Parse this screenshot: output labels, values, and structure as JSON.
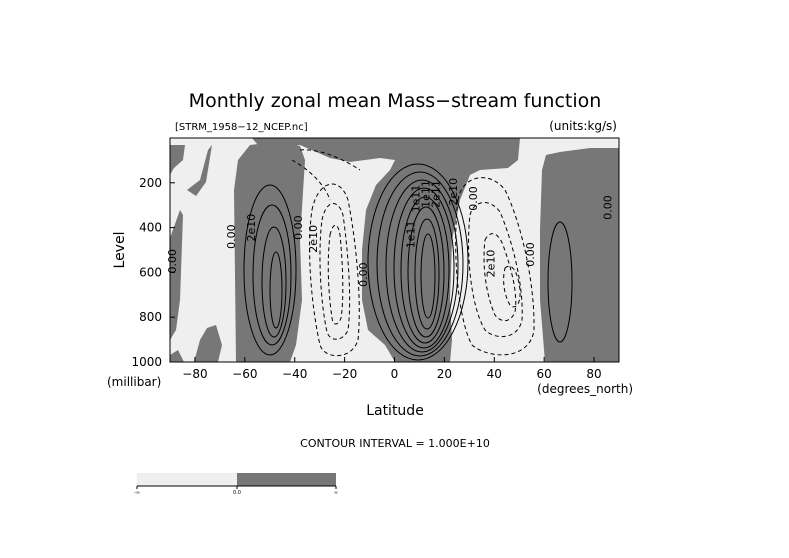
{
  "chart_data": {
    "type": "contour",
    "title": "Monthly zonal mean Mass−stream function",
    "subtitle_left": "[STRM_1958−12_NCEP.nc]",
    "subtitle_right": "(units:kg/s)",
    "xlabel": "Latitude",
    "ylabel": "Level",
    "x_unit": "(degrees_north)",
    "y_unit": "(millibar)",
    "xlim": [
      -90,
      90
    ],
    "ylim": [
      1000,
      0
    ],
    "x_ticks": [
      -80,
      -60,
      -40,
      -20,
      0,
      20,
      40,
      60,
      80
    ],
    "x_tick_labels": [
      "−80",
      "−60",
      "−40",
      "−20",
      "0",
      "20",
      "40",
      "60",
      "80"
    ],
    "y_ticks": [
      200,
      400,
      600,
      800,
      1000
    ],
    "y_tick_labels": [
      "200",
      "400",
      "600",
      "800",
      "1000"
    ],
    "contour_interval_text": "CONTOUR INTERVAL = 1.000E+10",
    "contour_labels": [
      {
        "text": "0.00",
        "lat": -91,
        "lev": 550
      },
      {
        "text": "0.00",
        "lat": -64,
        "lev": 440
      },
      {
        "text": "2e10",
        "lat": -56,
        "lev": 400
      },
      {
        "text": "0.00",
        "lat": -37,
        "lev": 400
      },
      {
        "text": "2e10",
        "lat": -31,
        "lev": 450
      },
      {
        "text": "0.00",
        "lat": -11,
        "lev": 610
      },
      {
        "text": "1e11",
        "lat": 8,
        "lev": 430
      },
      {
        "text": "1e11",
        "lat": 10,
        "lev": 270
      },
      {
        "text": "1e11",
        "lat": 14,
        "lev": 250
      },
      {
        "text": "2e11",
        "lat": 18,
        "lev": 250
      },
      {
        "text": "2e10",
        "lat": 25,
        "lev": 240
      },
      {
        "text": "0.00",
        "lat": 33,
        "lev": 270
      },
      {
        "text": "2e10",
        "lat": 40,
        "lev": 560
      },
      {
        "text": "0.00",
        "lat": 56,
        "lev": 520
      },
      {
        "text": "0.00",
        "lat": 87,
        "lev": 310
      }
    ],
    "colorbar": {
      "labels": [
        "-∞",
        "0.0",
        "∞"
      ],
      "colors": [
        "#efefef",
        "#777777"
      ]
    },
    "colors": {
      "positive": "#777777",
      "negative": "#efefef",
      "line": "#000000"
    }
  }
}
